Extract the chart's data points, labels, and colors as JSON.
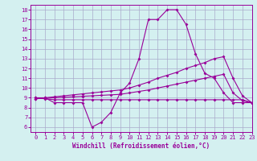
{
  "x": [
    0,
    1,
    2,
    3,
    4,
    5,
    6,
    7,
    8,
    9,
    10,
    11,
    12,
    13,
    14,
    15,
    16,
    17,
    18,
    19,
    20,
    21,
    22,
    23
  ],
  "line1": [
    9,
    9,
    8.5,
    8.5,
    8.5,
    8.5,
    6,
    6.5,
    7.5,
    9.5,
    10.5,
    13,
    17,
    17,
    18,
    18,
    16.5,
    13.5,
    11.5,
    11,
    9.5,
    8.5,
    8.5,
    8.5
  ],
  "line2": [
    9,
    8.9,
    8.8,
    8.8,
    8.8,
    8.8,
    8.8,
    8.8,
    8.8,
    8.8,
    8.8,
    8.8,
    8.8,
    8.8,
    8.8,
    8.8,
    8.8,
    8.8,
    8.8,
    8.8,
    8.8,
    8.8,
    8.8,
    8.5
  ],
  "line3": [
    8.9,
    9.0,
    9.1,
    9.2,
    9.3,
    9.4,
    9.5,
    9.6,
    9.7,
    9.8,
    10.0,
    10.3,
    10.6,
    11.0,
    11.3,
    11.6,
    12.0,
    12.3,
    12.6,
    13.0,
    13.2,
    11.0,
    9.2,
    8.5
  ],
  "line4": [
    8.9,
    8.95,
    9.0,
    9.05,
    9.1,
    9.15,
    9.2,
    9.25,
    9.3,
    9.35,
    9.5,
    9.65,
    9.8,
    10.0,
    10.2,
    10.4,
    10.6,
    10.8,
    11.0,
    11.2,
    11.4,
    9.5,
    8.7,
    8.5
  ],
  "color": "#990099",
  "bg_color": "#d4f0f0",
  "grid_color": "#aaaacc",
  "xlabel": "Windchill (Refroidissement éolien,°C)",
  "ylim": [
    5.5,
    18.5
  ],
  "xlim": [
    -0.5,
    23
  ],
  "yticks": [
    6,
    7,
    8,
    9,
    10,
    11,
    12,
    13,
    14,
    15,
    16,
    17,
    18
  ],
  "xticks": [
    0,
    1,
    2,
    3,
    4,
    5,
    6,
    7,
    8,
    9,
    10,
    11,
    12,
    13,
    14,
    15,
    16,
    17,
    18,
    19,
    20,
    21,
    22,
    23
  ]
}
